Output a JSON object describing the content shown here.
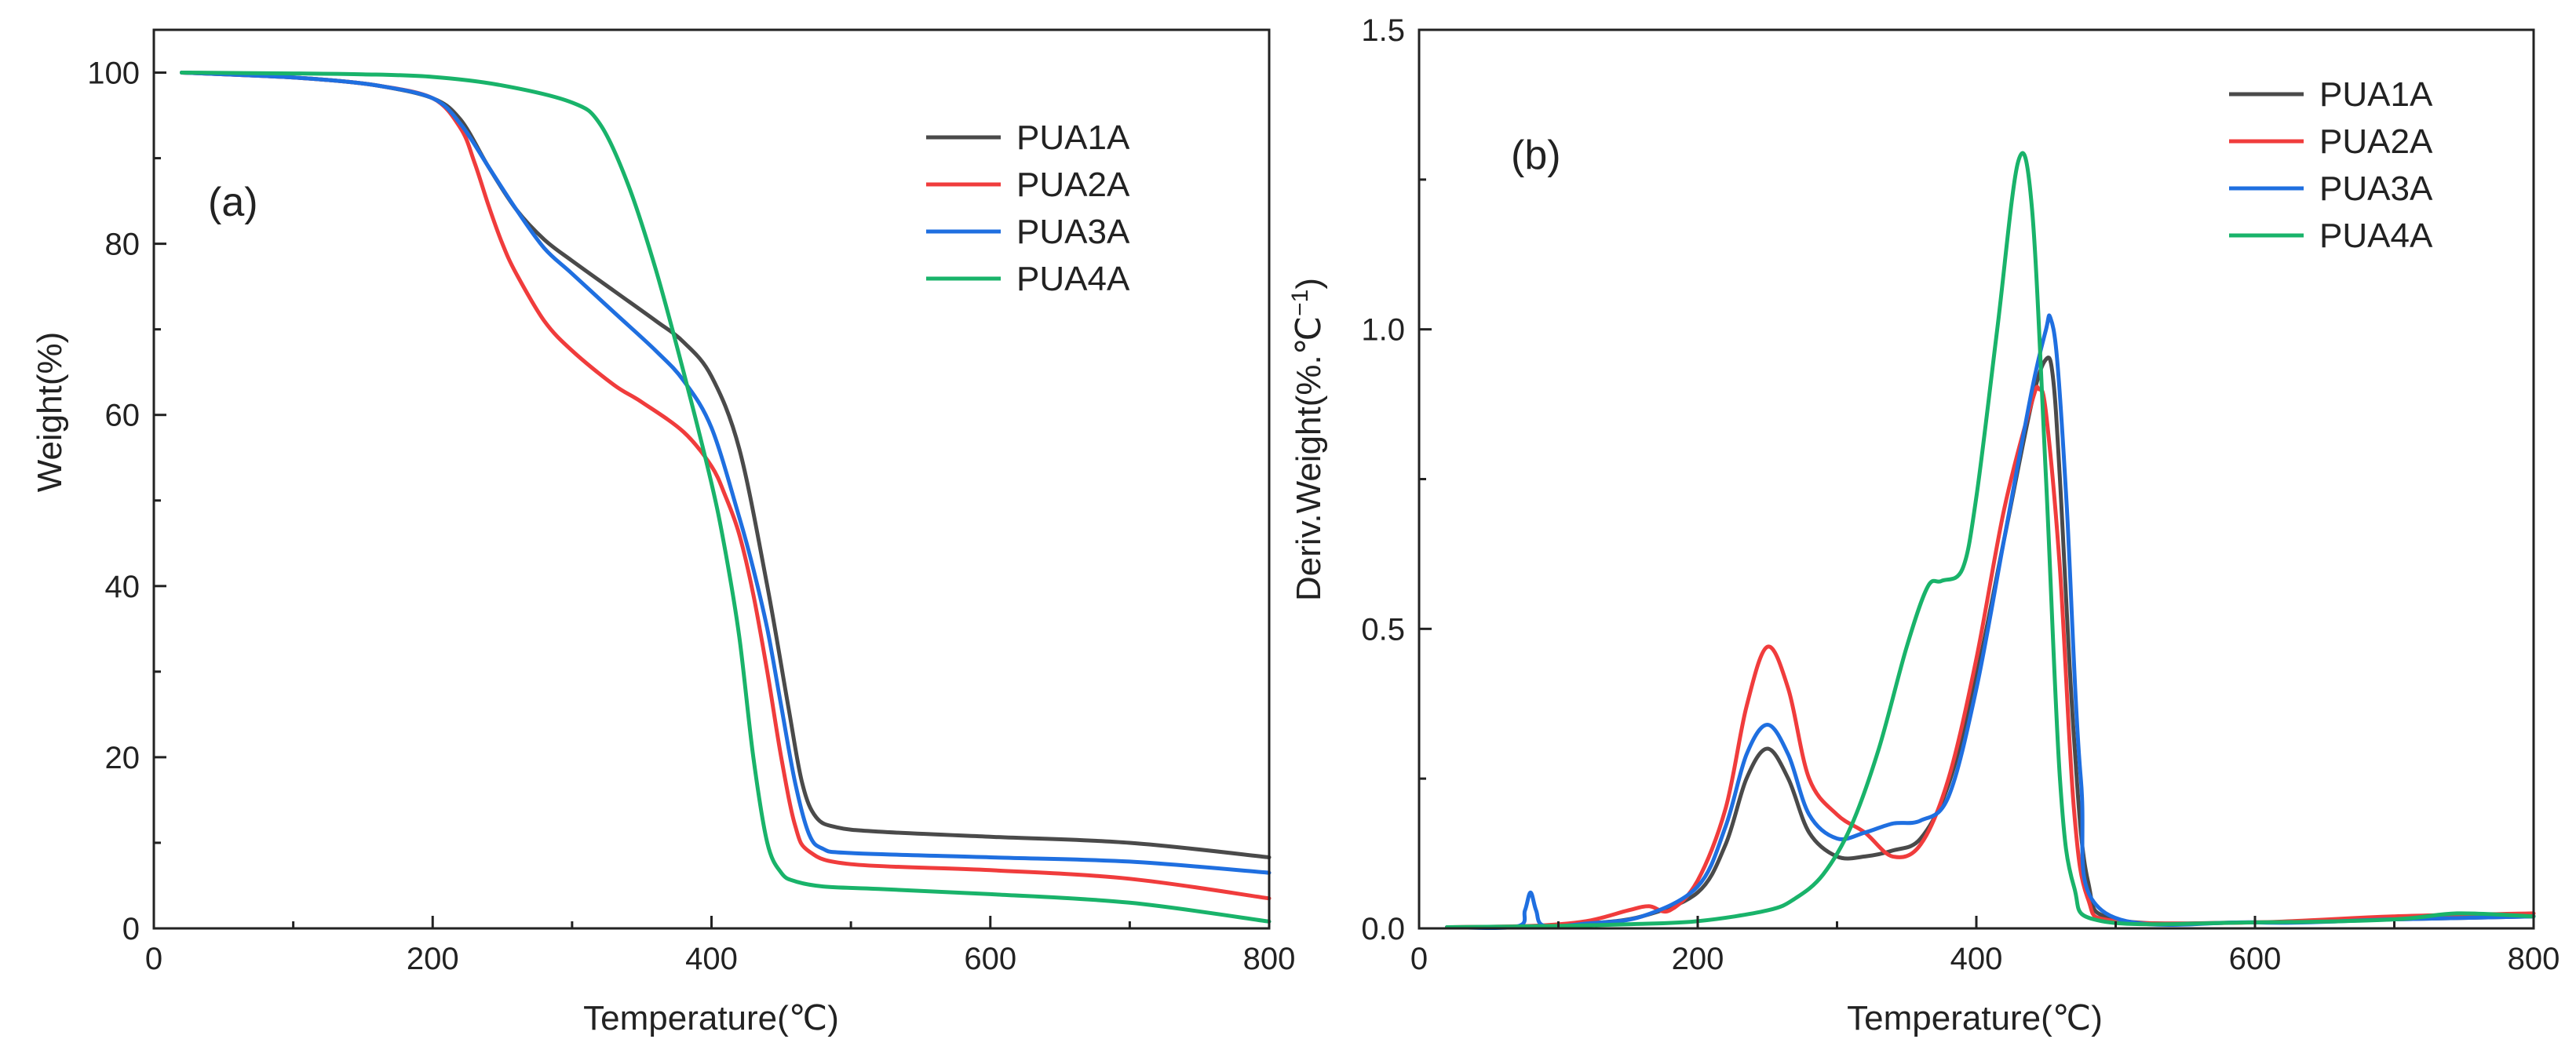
{
  "chart_data": [
    {
      "type": "line",
      "panel_label": "(a)",
      "xlabel": "Temperature(℃)",
      "ylabel": "Weight(%)",
      "xlim": [
        0,
        800
      ],
      "ylim": [
        0,
        105
      ],
      "xticks": [
        0,
        200,
        400,
        600,
        800
      ],
      "yticks": [
        0,
        20,
        40,
        60,
        80,
        100
      ],
      "legend_position": "top-right",
      "series": [
        {
          "name": "PUA1A",
          "color": "#4a4a4a",
          "x": [
            20,
            80,
            120,
            160,
            200,
            220,
            240,
            260,
            280,
            300,
            330,
            360,
            380,
            400,
            420,
            440,
            455,
            465,
            475,
            490,
            520,
            600,
            700,
            800
          ],
          "y": [
            100,
            99.6,
            99.2,
            98.5,
            97,
            94.5,
            89,
            84,
            80.5,
            78,
            74.5,
            71,
            68.5,
            64.5,
            56,
            40,
            26,
            17,
            13,
            11.8,
            11.3,
            10.7,
            10,
            8.3
          ]
        },
        {
          "name": "PUA2A",
          "color": "#f03c3c",
          "x": [
            20,
            80,
            120,
            160,
            200,
            220,
            230,
            240,
            250,
            260,
            280,
            300,
            330,
            350,
            380,
            400,
            410,
            420,
            430,
            440,
            450,
            460,
            470,
            500,
            600,
            700,
            800
          ],
          "y": [
            100,
            99.6,
            99.2,
            98.5,
            97,
            93.5,
            89.5,
            84.5,
            80,
            76.5,
            71,
            67.5,
            63.5,
            61.5,
            58,
            54,
            50.5,
            46,
            39,
            30,
            20,
            12,
            9,
            7.5,
            6.8,
            5.8,
            3.5
          ]
        },
        {
          "name": "PUA3A",
          "color": "#1f6fe0",
          "x": [
            20,
            80,
            120,
            160,
            200,
            220,
            240,
            260,
            280,
            300,
            330,
            360,
            380,
            400,
            420,
            430,
            440,
            450,
            460,
            470,
            480,
            500,
            600,
            700,
            800
          ],
          "y": [
            100,
            99.6,
            99.2,
            98.5,
            97,
            94,
            89,
            84,
            79.5,
            76.5,
            72,
            67.5,
            64,
            58.5,
            48,
            42,
            35,
            26,
            17,
            11,
            9.3,
            8.8,
            8.3,
            7.8,
            6.5
          ]
        },
        {
          "name": "PUA4A",
          "color": "#19b36a",
          "x": [
            20,
            100,
            150,
            200,
            250,
            300,
            320,
            340,
            360,
            380,
            400,
            410,
            420,
            430,
            440,
            450,
            460,
            480,
            520,
            600,
            700,
            800
          ],
          "y": [
            100,
            99.9,
            99.8,
            99.5,
            98.5,
            96.5,
            94,
            87,
            77,
            65,
            52,
            44,
            34,
            20,
            10,
            6.5,
            5.5,
            4.9,
            4.6,
            4,
            3,
            0.8
          ]
        }
      ]
    },
    {
      "type": "line",
      "panel_label": "(b)",
      "xlabel": "Temperature(℃)",
      "ylabel": "Deriv.Weight(%.℃",
      "ylabel_sup": "−1",
      "ylabel_close": ")",
      "xlim": [
        0,
        800
      ],
      "ylim": [
        0,
        1.5
      ],
      "xticks": [
        0,
        200,
        400,
        600,
        800
      ],
      "yticks": [
        0.0,
        0.5,
        1.0,
        1.5
      ],
      "ytick_labels": [
        "0.0",
        "0.5",
        "1.0",
        "1.5"
      ],
      "legend_position": "top-right",
      "series": [
        {
          "name": "PUA1A",
          "color": "#4a4a4a",
          "x": [
            20,
            80,
            120,
            160,
            200,
            220,
            235,
            250,
            265,
            280,
            300,
            320,
            340,
            360,
            380,
            400,
            420,
            440,
            450,
            455,
            460,
            470,
            480,
            500,
            600,
            700,
            800
          ],
          "y": [
            0.002,
            0.003,
            0.008,
            0.02,
            0.06,
            0.14,
            0.25,
            0.3,
            0.25,
            0.16,
            0.12,
            0.12,
            0.13,
            0.15,
            0.24,
            0.42,
            0.65,
            0.88,
            0.95,
            0.92,
            0.75,
            0.32,
            0.08,
            0.015,
            0.01,
            0.015,
            0.02
          ]
        },
        {
          "name": "PUA2A",
          "color": "#f03c3c",
          "x": [
            20,
            80,
            120,
            150,
            165,
            180,
            200,
            220,
            235,
            250,
            265,
            280,
            300,
            320,
            340,
            360,
            380,
            400,
            420,
            440,
            445,
            450,
            460,
            470,
            480,
            500,
            600,
            700,
            800
          ],
          "y": [
            0.002,
            0.004,
            0.012,
            0.03,
            0.037,
            0.03,
            0.08,
            0.2,
            0.37,
            0.47,
            0.4,
            0.25,
            0.19,
            0.16,
            0.12,
            0.14,
            0.25,
            0.45,
            0.7,
            0.88,
            0.9,
            0.86,
            0.6,
            0.2,
            0.05,
            0.012,
            0.01,
            0.02,
            0.025
          ]
        },
        {
          "name": "PUA3A",
          "color": "#1f6fe0",
          "x": [
            20,
            70,
            76,
            80,
            84,
            90,
            120,
            160,
            200,
            220,
            235,
            250,
            265,
            280,
            300,
            320,
            340,
            360,
            380,
            400,
            420,
            440,
            450,
            453,
            458,
            465,
            475,
            490,
            600,
            700,
            800
          ],
          "y": [
            0.002,
            0.003,
            0.03,
            0.06,
            0.03,
            0.004,
            0.008,
            0.02,
            0.07,
            0.17,
            0.29,
            0.34,
            0.29,
            0.19,
            0.15,
            0.16,
            0.175,
            0.18,
            0.22,
            0.4,
            0.65,
            0.9,
            1.0,
            1.02,
            0.95,
            0.7,
            0.25,
            0.03,
            0.01,
            0.015,
            0.02
          ]
        },
        {
          "name": "PUA4A",
          "color": "#19b36a",
          "x": [
            20,
            100,
            150,
            200,
            250,
            270,
            290,
            310,
            330,
            350,
            365,
            375,
            390,
            400,
            415,
            430,
            440,
            450,
            460,
            470,
            490,
            600,
            700,
            745,
            800
          ],
          "y": [
            0.002,
            0.004,
            0.007,
            0.012,
            0.03,
            0.05,
            0.09,
            0.17,
            0.3,
            0.47,
            0.57,
            0.58,
            0.6,
            0.72,
            1.0,
            1.28,
            1.2,
            0.75,
            0.25,
            0.07,
            0.012,
            0.01,
            0.015,
            0.025,
            0.02
          ]
        }
      ]
    }
  ]
}
